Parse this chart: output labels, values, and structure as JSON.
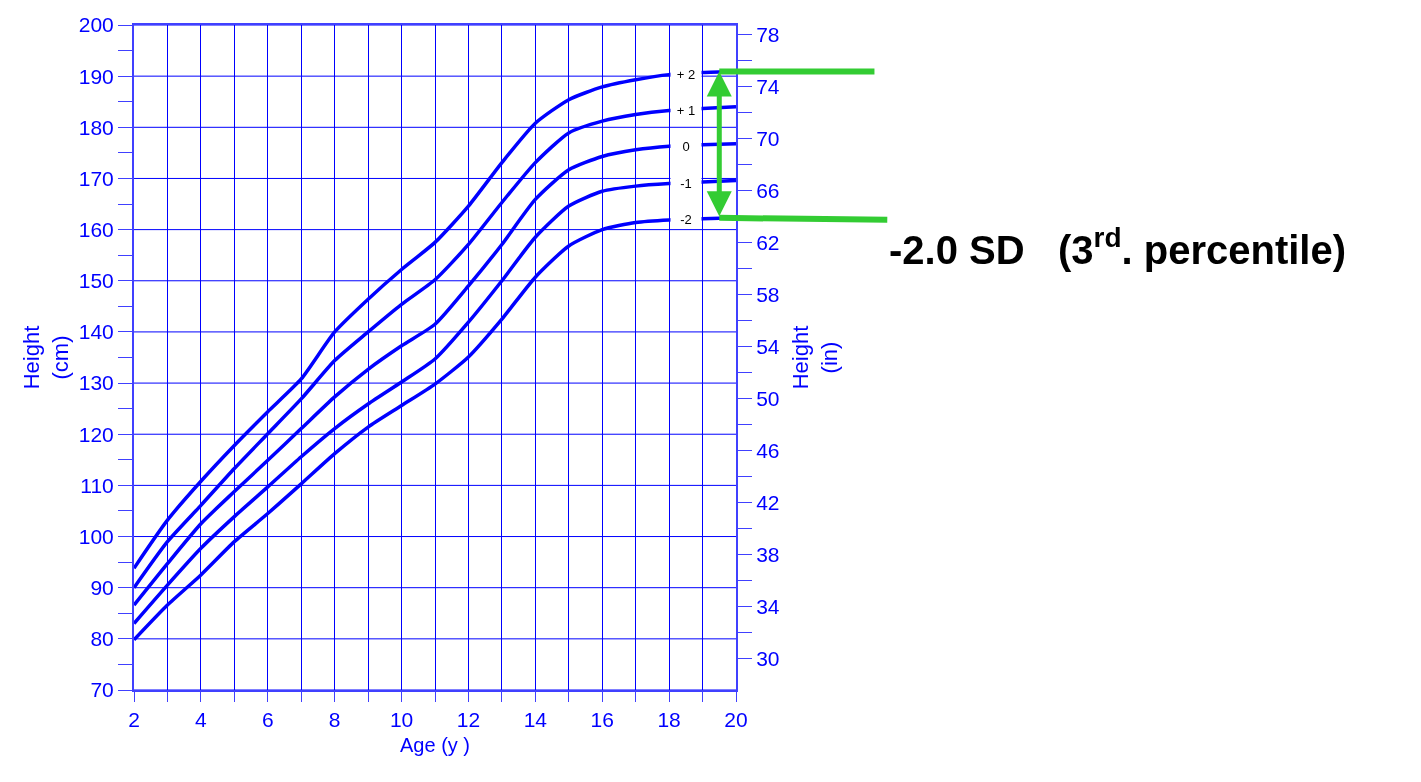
{
  "chart_data": {
    "type": "line",
    "x": [
      2,
      3,
      4,
      5,
      6,
      7,
      8,
      9,
      10,
      11,
      12,
      13,
      14,
      15,
      16,
      17,
      18,
      19,
      20
    ],
    "series": [
      {
        "name": "+ 2",
        "color": "#0000ff",
        "values": [
          93.8,
          103.2,
          110.8,
          117.8,
          124.4,
          130.8,
          140.0,
          146.4,
          152.2,
          157.5,
          164.6,
          173.1,
          180.8,
          185.4,
          187.9,
          189.3,
          190.3,
          190.7,
          190.9
        ]
      },
      {
        "name": "+ 1",
        "color": "#0000ff",
        "values": [
          90.0,
          99.0,
          106.1,
          113.3,
          120.1,
          126.9,
          134.4,
          140.0,
          145.4,
          150.2,
          157.1,
          165.3,
          173.1,
          178.9,
          181.2,
          182.5,
          183.3,
          183.7,
          184.0
        ]
      },
      {
        "name": "0",
        "color": "#0000ff",
        "values": [
          86.6,
          94.7,
          102.5,
          108.8,
          114.9,
          121.1,
          127.3,
          132.7,
          137.3,
          141.5,
          149.0,
          157.1,
          165.9,
          171.7,
          174.3,
          175.6,
          176.3,
          176.6,
          176.8
        ]
      },
      {
        "name": "-1",
        "color": "#0000ff",
        "values": [
          83.0,
          90.5,
          97.7,
          103.9,
          109.7,
          115.6,
          121.1,
          125.9,
          130.2,
          134.7,
          141.9,
          150.0,
          158.5,
          164.6,
          167.5,
          168.5,
          169.0,
          169.3,
          169.6
        ]
      },
      {
        "name": "-2",
        "color": "#0000ff",
        "values": [
          79.8,
          86.6,
          92.5,
          99.0,
          104.5,
          110.3,
          116.2,
          121.4,
          125.6,
          129.8,
          135.1,
          142.5,
          150.7,
          156.8,
          160.0,
          161.4,
          161.9,
          162.1,
          162.3
        ]
      }
    ],
    "xlabel": "Age (y )",
    "ylabel": "Height\n(cm)",
    "y2label": "Height\n(in)",
    "xlim": [
      2,
      20
    ],
    "xticks": [
      2,
      {
        "value": 3,
        "label": null
      },
      4,
      {
        "value": 5,
        "label": null
      },
      6,
      {
        "value": 7,
        "label": null
      },
      8,
      {
        "value": 9,
        "label": null
      },
      10,
      {
        "value": 11,
        "label": null
      },
      12,
      {
        "value": 13,
        "label": null
      },
      14,
      {
        "value": 15,
        "label": null
      },
      16,
      {
        "value": 17,
        "label": null
      },
      18,
      {
        "value": 19,
        "label": null
      },
      20
    ],
    "ylim": [
      70,
      200
    ],
    "yticks": [
      70,
      {
        "value": 75,
        "label": null
      },
      80,
      {
        "value": 85,
        "label": null
      },
      90,
      {
        "value": 95,
        "label": null
      },
      100,
      {
        "value": 105,
        "label": null
      },
      110,
      {
        "value": 115,
        "label": null
      },
      120,
      {
        "value": 125,
        "label": null
      },
      130,
      {
        "value": 135,
        "label": null
      },
      140,
      {
        "value": 145,
        "label": null
      },
      150,
      {
        "value": 155,
        "label": null
      },
      160,
      {
        "value": 165,
        "label": null
      },
      170,
      {
        "value": 175,
        "label": null
      },
      180,
      {
        "value": 185,
        "label": null
      },
      190,
      {
        "value": 195,
        "label": null
      },
      200
    ],
    "y2lim": [
      27.559,
      78.74
    ],
    "y2ticks": [
      30,
      {
        "value": 32,
        "label": null
      },
      34,
      {
        "value": 36,
        "label": null
      },
      38,
      {
        "value": 40,
        "label": null
      },
      42,
      {
        "value": 44,
        "label": null
      },
      46,
      {
        "value": 48,
        "label": null
      },
      50,
      {
        "value": 52,
        "label": null
      },
      54,
      {
        "value": 56,
        "label": null
      },
      58,
      {
        "value": 60,
        "label": null
      },
      62,
      {
        "value": 64,
        "label": null
      },
      66,
      {
        "value": 68,
        "label": null
      },
      70,
      {
        "value": 72,
        "label": null
      },
      74,
      {
        "value": 76,
        "label": null
      },
      78
    ],
    "grid": true,
    "legend": false,
    "marker": "none",
    "annotations": [
      {
        "text": "-2.0 SD   (3$^{rd}$. percentile)",
        "x": 19.5,
        "y": 162.3
      }
    ]
  }
}
